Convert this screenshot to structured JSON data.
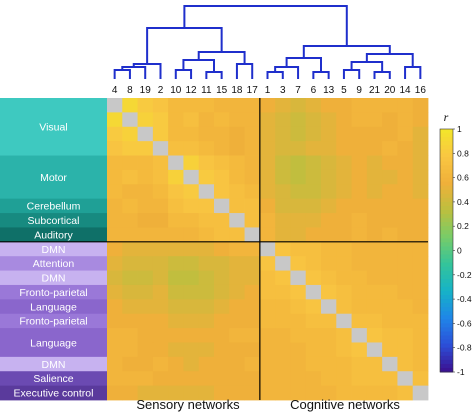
{
  "chart_data": {
    "type": "heatmap",
    "title": "",
    "colorbar": {
      "label": "r",
      "range": [
        -1,
        1
      ],
      "ticks": [
        "1",
        "0.8",
        "0.6",
        "0.4",
        "0.2",
        "0",
        "-0.2",
        "-0.4",
        "-0.6",
        "-0.8",
        "-1"
      ],
      "colors": [
        "#3b0f8f",
        "#2c4fd8",
        "#1f86e8",
        "#16b3c7",
        "#34c49a",
        "#78cc68",
        "#bdbf3e",
        "#f0b03a",
        "#f9c742",
        "#f2e62a"
      ]
    },
    "dendrogram_leaves": [
      "4",
      "8",
      "19",
      "2",
      "10",
      "12",
      "11",
      "15",
      "18",
      "17",
      "1",
      "3",
      "7",
      "6",
      "13",
      "5",
      "9",
      "21",
      "20",
      "14",
      "16"
    ],
    "groups": [
      {
        "name": "Sensory networks",
        "leaves": [
          "4",
          "8",
          "19",
          "2",
          "10",
          "12",
          "11",
          "15",
          "18",
          "17"
        ]
      },
      {
        "name": "Cognitive networks",
        "leaves": [
          "1",
          "3",
          "7",
          "6",
          "13",
          "5",
          "9",
          "21",
          "20",
          "14",
          "16"
        ]
      }
    ],
    "row_labels": [
      {
        "text": "Visual",
        "start": 0,
        "span": 4,
        "color": "#3ec9c0"
      },
      {
        "text": "Motor",
        "start": 4,
        "span": 3,
        "color": "#2bb3aa"
      },
      {
        "text": "Cerebellum",
        "start": 7,
        "span": 1,
        "color": "#1fa096"
      },
      {
        "text": "Subcortical",
        "start": 8,
        "span": 1,
        "color": "#178a80"
      },
      {
        "text": "Auditory",
        "start": 9,
        "span": 1,
        "color": "#0f7068"
      },
      {
        "text": "DMN",
        "start": 10,
        "span": 1,
        "color": "#c7b2f0"
      },
      {
        "text": "Attention",
        "start": 11,
        "span": 1,
        "color": "#a88ae0"
      },
      {
        "text": "DMN",
        "start": 12,
        "span": 1,
        "color": "#c7b2f0"
      },
      {
        "text": "Fronto-parietal",
        "start": 13,
        "span": 1,
        "color": "#9a78d8"
      },
      {
        "text": "Language",
        "start": 14,
        "span": 1,
        "color": "#8a66cc"
      },
      {
        "text": "Fronto-parietal",
        "start": 15,
        "span": 1,
        "color": "#9a78d8"
      },
      {
        "text": "Language",
        "start": 16,
        "span": 2,
        "color": "#8a66cc"
      },
      {
        "text": "DMN",
        "start": 18,
        "span": 1,
        "color": "#c7b2f0"
      },
      {
        "text": "Salience",
        "start": 19,
        "span": 1,
        "color": "#6b4ab2"
      },
      {
        "text": "Executive control",
        "start": 20,
        "span": 1,
        "color": "#5a3a9c"
      }
    ],
    "values": [
      [
        1.0,
        0.9,
        0.8,
        0.75,
        0.65,
        0.65,
        0.65,
        0.6,
        0.6,
        0.6,
        0.55,
        0.5,
        0.45,
        0.5,
        0.55,
        0.55,
        0.6,
        0.6,
        0.6,
        0.6,
        0.55
      ],
      [
        0.9,
        1.0,
        0.85,
        0.8,
        0.65,
        0.7,
        0.6,
        0.65,
        0.6,
        0.6,
        0.5,
        0.45,
        0.4,
        0.45,
        0.5,
        0.55,
        0.6,
        0.6,
        0.55,
        0.6,
        0.55
      ],
      [
        0.8,
        0.85,
        1.0,
        0.8,
        0.65,
        0.65,
        0.6,
        0.6,
        0.55,
        0.6,
        0.5,
        0.45,
        0.4,
        0.45,
        0.5,
        0.55,
        0.55,
        0.55,
        0.55,
        0.6,
        0.5
      ],
      [
        0.75,
        0.8,
        0.8,
        1.0,
        0.7,
        0.7,
        0.65,
        0.6,
        0.55,
        0.6,
        0.5,
        0.45,
        0.45,
        0.5,
        0.5,
        0.55,
        0.55,
        0.55,
        0.6,
        0.55,
        0.5
      ],
      [
        0.65,
        0.65,
        0.65,
        0.7,
        1.0,
        0.85,
        0.75,
        0.7,
        0.65,
        0.6,
        0.5,
        0.4,
        0.35,
        0.4,
        0.45,
        0.5,
        0.55,
        0.5,
        0.55,
        0.55,
        0.5
      ],
      [
        0.65,
        0.7,
        0.65,
        0.7,
        0.85,
        1.0,
        0.8,
        0.75,
        0.65,
        0.6,
        0.5,
        0.4,
        0.35,
        0.4,
        0.45,
        0.5,
        0.55,
        0.5,
        0.5,
        0.55,
        0.5
      ],
      [
        0.65,
        0.6,
        0.6,
        0.65,
        0.75,
        0.8,
        1.0,
        0.75,
        0.7,
        0.65,
        0.5,
        0.45,
        0.4,
        0.4,
        0.45,
        0.5,
        0.55,
        0.5,
        0.55,
        0.55,
        0.5
      ],
      [
        0.6,
        0.65,
        0.6,
        0.6,
        0.7,
        0.75,
        0.75,
        1.0,
        0.7,
        0.7,
        0.55,
        0.45,
        0.45,
        0.45,
        0.5,
        0.55,
        0.55,
        0.55,
        0.55,
        0.55,
        0.55
      ],
      [
        0.6,
        0.6,
        0.55,
        0.55,
        0.65,
        0.65,
        0.7,
        0.7,
        1.0,
        0.7,
        0.6,
        0.5,
        0.5,
        0.5,
        0.55,
        0.55,
        0.6,
        0.55,
        0.55,
        0.55,
        0.55
      ],
      [
        0.6,
        0.6,
        0.6,
        0.6,
        0.6,
        0.6,
        0.65,
        0.7,
        0.7,
        1.0,
        0.6,
        0.5,
        0.5,
        0.55,
        0.55,
        0.55,
        0.6,
        0.55,
        0.6,
        0.55,
        0.55
      ],
      [
        0.55,
        0.5,
        0.5,
        0.5,
        0.5,
        0.5,
        0.5,
        0.55,
        0.6,
        0.6,
        1.0,
        0.75,
        0.7,
        0.7,
        0.65,
        0.65,
        0.6,
        0.6,
        0.6,
        0.6,
        0.6
      ],
      [
        0.5,
        0.45,
        0.45,
        0.45,
        0.4,
        0.4,
        0.45,
        0.45,
        0.5,
        0.5,
        0.75,
        1.0,
        0.75,
        0.7,
        0.65,
        0.65,
        0.6,
        0.6,
        0.6,
        0.6,
        0.6
      ],
      [
        0.45,
        0.4,
        0.4,
        0.45,
        0.35,
        0.35,
        0.4,
        0.45,
        0.5,
        0.5,
        0.7,
        0.75,
        1.0,
        0.75,
        0.7,
        0.65,
        0.65,
        0.6,
        0.6,
        0.6,
        0.6
      ],
      [
        0.5,
        0.45,
        0.45,
        0.5,
        0.4,
        0.4,
        0.4,
        0.45,
        0.5,
        0.55,
        0.7,
        0.7,
        0.75,
        1.0,
        0.75,
        0.7,
        0.65,
        0.65,
        0.65,
        0.6,
        0.6
      ],
      [
        0.55,
        0.5,
        0.5,
        0.5,
        0.45,
        0.45,
        0.45,
        0.5,
        0.55,
        0.55,
        0.65,
        0.65,
        0.7,
        0.75,
        1.0,
        0.7,
        0.65,
        0.65,
        0.65,
        0.65,
        0.6
      ],
      [
        0.55,
        0.55,
        0.55,
        0.55,
        0.5,
        0.5,
        0.5,
        0.55,
        0.55,
        0.55,
        0.65,
        0.65,
        0.65,
        0.7,
        0.7,
        1.0,
        0.7,
        0.7,
        0.65,
        0.65,
        0.65
      ],
      [
        0.6,
        0.6,
        0.55,
        0.55,
        0.55,
        0.55,
        0.55,
        0.55,
        0.6,
        0.6,
        0.6,
        0.6,
        0.65,
        0.65,
        0.65,
        0.7,
        1.0,
        0.75,
        0.7,
        0.7,
        0.65
      ],
      [
        0.6,
        0.6,
        0.55,
        0.55,
        0.5,
        0.5,
        0.5,
        0.55,
        0.55,
        0.55,
        0.6,
        0.6,
        0.6,
        0.65,
        0.65,
        0.7,
        0.75,
        1.0,
        0.7,
        0.7,
        0.65
      ],
      [
        0.6,
        0.55,
        0.55,
        0.6,
        0.55,
        0.5,
        0.55,
        0.55,
        0.55,
        0.6,
        0.6,
        0.6,
        0.6,
        0.65,
        0.65,
        0.65,
        0.7,
        0.7,
        1.0,
        0.7,
        0.65
      ],
      [
        0.6,
        0.6,
        0.6,
        0.55,
        0.55,
        0.55,
        0.55,
        0.55,
        0.55,
        0.55,
        0.6,
        0.6,
        0.6,
        0.6,
        0.65,
        0.65,
        0.7,
        0.7,
        0.7,
        1.0,
        0.7
      ],
      [
        0.55,
        0.55,
        0.5,
        0.5,
        0.5,
        0.5,
        0.5,
        0.55,
        0.55,
        0.55,
        0.6,
        0.6,
        0.6,
        0.6,
        0.6,
        0.65,
        0.65,
        0.65,
        0.65,
        0.7,
        1.0
      ]
    ]
  }
}
